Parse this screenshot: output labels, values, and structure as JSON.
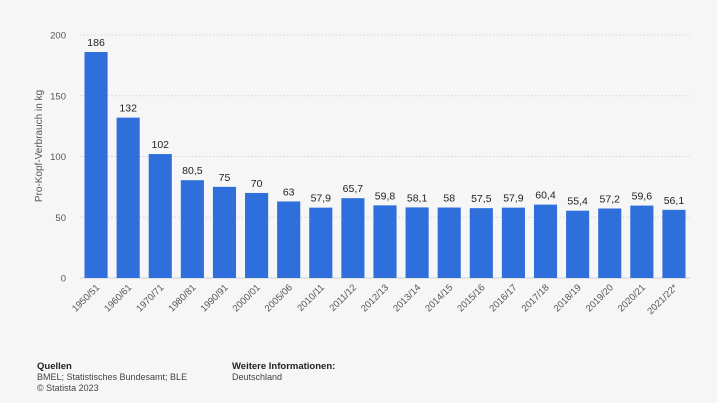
{
  "chart_data": {
    "type": "bar",
    "title": "",
    "xlabel": "",
    "ylabel": "Pro-Kopf-Verbrauch in kg",
    "ylim": [
      0,
      200
    ],
    "yticks": [
      0,
      50,
      100,
      150,
      200
    ],
    "grid": true,
    "bar_color": "#2f6fdc",
    "categories": [
      "1950/51",
      "1960/61",
      "1970/71",
      "1980/81",
      "1990/91",
      "2000/01",
      "2005/06",
      "2010/11",
      "2011/12",
      "2012/13",
      "2013/14",
      "2014/15",
      "2015/16",
      "2016/17",
      "2017/18",
      "2018/19",
      "2019/20",
      "2020/21",
      "2021/22*"
    ],
    "values": [
      186,
      132,
      102,
      80.5,
      75,
      70,
      63,
      57.9,
      65.7,
      59.8,
      58.1,
      58,
      57.5,
      57.9,
      60.4,
      55.4,
      57.2,
      59.6,
      56.1
    ],
    "value_labels": [
      "186",
      "132",
      "102",
      "80,5",
      "75",
      "70",
      "63",
      "57,9",
      "65,7",
      "59,8",
      "58,1",
      "58",
      "57,5",
      "57,9",
      "60,4",
      "55,4",
      "57,2",
      "59,6",
      "56,1"
    ]
  },
  "footer": {
    "sources_heading": "Quellen",
    "sources_text": "BMEL; Statistisches Bundesamt; BLE",
    "copyright": "© Statista 2023",
    "more_info_heading": "Weitere Informationen:",
    "more_info_text": "Deutschland"
  }
}
